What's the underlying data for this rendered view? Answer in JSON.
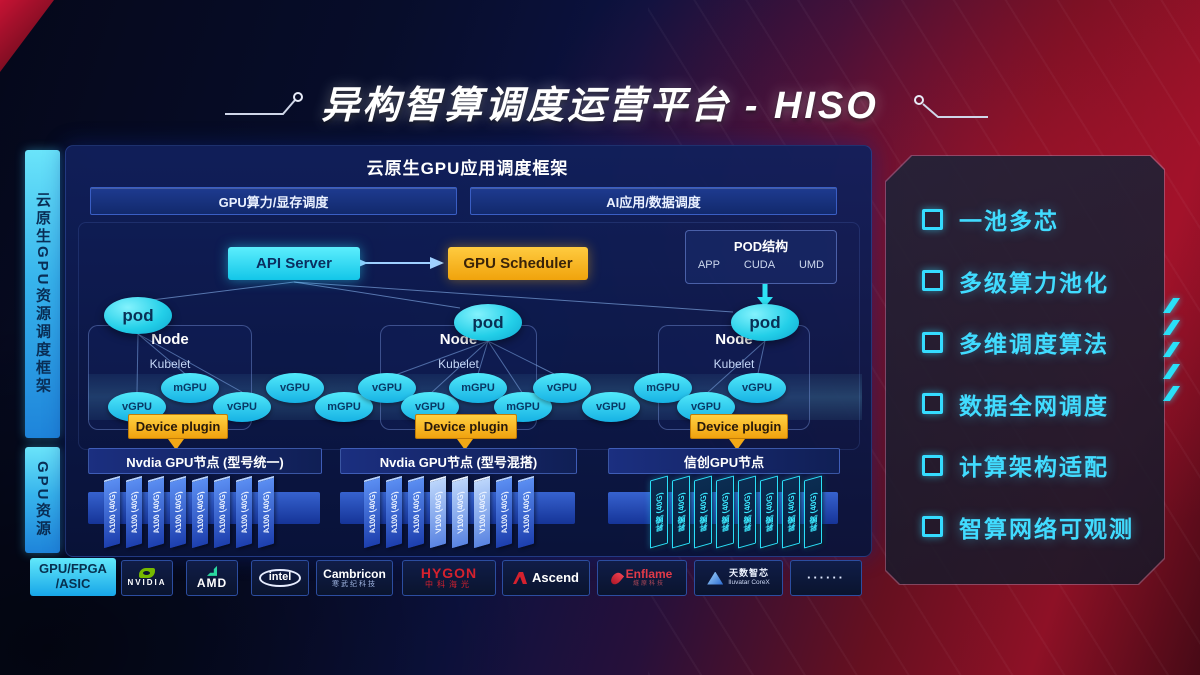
{
  "title": "异构智算调度运营平台 - HISO",
  "sidebar": {
    "framework_label": "云原生GPU资源调度框架",
    "resource_label": "GPU资源"
  },
  "scheduling": {
    "header": "云原生GPU应用调度框架",
    "bars": [
      {
        "label": "GPU算力/显存调度"
      },
      {
        "label": "AI应用/数据调度"
      }
    ],
    "api_server": "API Server",
    "gpu_scheduler": "GPU Scheduler",
    "pod_structure": {
      "title": "POD结构",
      "items": [
        "APP",
        "CUDA",
        "UMD"
      ]
    },
    "node_label": "Node",
    "kubelet_label": "Kubelet",
    "pod_label": "pod",
    "device_plugin_label": "Device plugin",
    "gpu_ellipses": [
      "vGPU",
      "mGPU",
      "vGPU",
      "vGPU",
      "mGPU",
      "vGPU",
      "vGPU",
      "mGPU",
      "mGPU",
      "vGPU",
      "vGPU",
      "mGPU",
      "vGPU",
      "vGPU"
    ]
  },
  "gpu_rows": {
    "groups": [
      {
        "header": "Nvdia GPU节点 (型号统一)",
        "cards": [
          {
            "label": "A100 (40G)",
            "variant": "blue"
          },
          {
            "label": "A100 (40G)",
            "variant": "blue"
          },
          {
            "label": "A100 (40G)",
            "variant": "blue"
          },
          {
            "label": "A100 (40G)",
            "variant": "blue"
          },
          {
            "label": "A100 (40G)",
            "variant": "blue"
          },
          {
            "label": "A100 (40G)",
            "variant": "blue"
          },
          {
            "label": "A100 (40G)",
            "variant": "blue"
          },
          {
            "label": "A100 (40G)",
            "variant": "blue"
          }
        ]
      },
      {
        "header": "Nvdia GPU节点 (型号混搭)",
        "cards": [
          {
            "label": "A100 (40G)",
            "variant": "blue"
          },
          {
            "label": "A100 (40G)",
            "variant": "blue"
          },
          {
            "label": "A100 (40G)",
            "variant": "blue"
          },
          {
            "label": "V100 (40G)",
            "variant": "light"
          },
          {
            "label": "V100 (40G)",
            "variant": "light"
          },
          {
            "label": "V100 (40G)",
            "variant": "light"
          },
          {
            "label": "A100 (40G)",
            "variant": "blue"
          },
          {
            "label": "A100 (40G)",
            "variant": "blue"
          }
        ]
      },
      {
        "header": "信创GPU节点",
        "cards": [
          {
            "label": "昇腾 (40G)",
            "variant": "cyan"
          },
          {
            "label": "昇腾 (40G)",
            "variant": "cyan"
          },
          {
            "label": "昇腾 (40G)",
            "variant": "cyan"
          },
          {
            "label": "昇腾 (40G)",
            "variant": "cyan"
          },
          {
            "label": "昇腾 (40G)",
            "variant": "cyan"
          },
          {
            "label": "昇腾 (40G)",
            "variant": "cyan"
          },
          {
            "label": "昇腾 (40G)",
            "variant": "cyan"
          },
          {
            "label": "昇腾 (40G)",
            "variant": "cyan"
          }
        ]
      }
    ]
  },
  "hardware": {
    "label_line1": "GPU/FPGA",
    "label_line2": "/ASIC",
    "vendors": [
      {
        "id": "nvidia",
        "name": "NVIDIA"
      },
      {
        "id": "amd",
        "name": "AMD"
      },
      {
        "id": "intel",
        "name": "intel"
      },
      {
        "id": "cambricon",
        "name": "Cambricon",
        "sub": "寒武纪科技"
      },
      {
        "id": "hygon",
        "name": "HYGON",
        "sub": "中科海光"
      },
      {
        "id": "ascend",
        "name": "Ascend"
      },
      {
        "id": "enflame",
        "name": "Enflame",
        "sub": "燧原科技"
      },
      {
        "id": "iluvatar",
        "name": "天数智芯",
        "sub": "Iluvatar CoreX"
      },
      {
        "id": "more",
        "name": "······"
      }
    ]
  },
  "features": [
    "一池多芯",
    "多级算力池化",
    "多维调度算法",
    "数据全网调度",
    "计算架构适配",
    "智算网络可观测"
  ],
  "colors": {
    "accent_cyan": "#2ee3f5",
    "accent_amber": "#f7b41a",
    "accent_blue": "#2f63d8",
    "accent_red": "#c31230"
  }
}
